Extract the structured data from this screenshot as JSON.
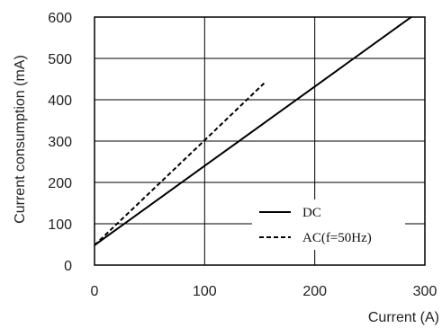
{
  "chart_data": {
    "type": "line",
    "title": "",
    "xlabel": "Current (A)",
    "ylabel": "Current consumption (mA)",
    "xlim": [
      0,
      300
    ],
    "ylim": [
      0,
      600
    ],
    "x_ticks": [
      "0",
      "100",
      "200",
      "300"
    ],
    "y_ticks": [
      "0",
      "100",
      "200",
      "300",
      "400",
      "500",
      "600"
    ],
    "grid": "on",
    "legend_position": "bottom-right",
    "series": [
      {
        "name": "DC",
        "style": "solid",
        "color": "#000000",
        "x": [
          0,
          100,
          200,
          300
        ],
        "y": [
          48,
          240,
          432,
          624
        ]
      },
      {
        "name": "AC(f=50Hz)",
        "style": "dashed",
        "color": "#000000",
        "x": [
          0,
          50,
          100,
          154
        ],
        "y": [
          48,
          175,
          302,
          440
        ]
      }
    ]
  }
}
